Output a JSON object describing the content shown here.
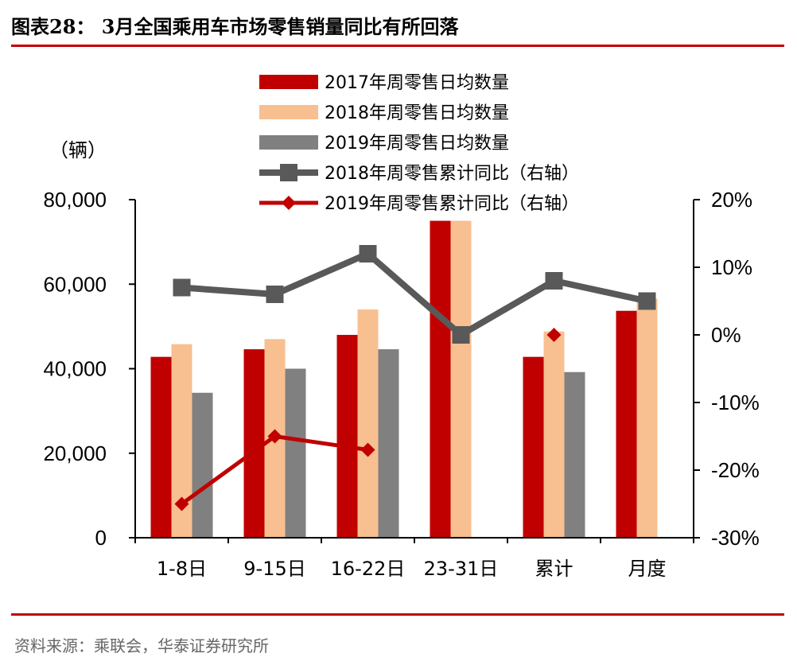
{
  "title": "图表28： 3月全国乘用车市场零售销量同比有所回落",
  "source": "资料来源：乘联会，华泰证券研究所",
  "chart_data": {
    "type": "bar",
    "unit_label": "（辆）",
    "categories": [
      "1-8日",
      "9-15日",
      "16-22日",
      "23-31日",
      "累计",
      "月度"
    ],
    "y_left": {
      "ylim": [
        0,
        80000
      ],
      "ticks": [
        "0",
        "20,000",
        "40,000",
        "60,000",
        "80,000"
      ],
      "tick_values": [
        0,
        20000,
        40000,
        60000,
        80000
      ]
    },
    "y_right": {
      "ylim": [
        -0.3,
        0.2
      ],
      "ticks": [
        "-30%",
        "-20%",
        "-10%",
        "0%",
        "10%",
        "20%"
      ],
      "tick_values": [
        -0.3,
        -0.2,
        -0.1,
        0.0,
        0.1,
        0.2
      ]
    },
    "bar_series": [
      {
        "name": "2017年周零售日均数量",
        "color": "#c00000",
        "values": [
          42800,
          44600,
          48000,
          75000,
          42800,
          53700
        ]
      },
      {
        "name": "2018年周零售日均数量",
        "color": "#f8bf91",
        "values": [
          45800,
          47000,
          54000,
          75000,
          48800,
          56600
        ]
      },
      {
        "name": "2019年周零售日均数量",
        "color": "#808080",
        "values": [
          34300,
          40000,
          44600,
          null,
          39200,
          null
        ]
      }
    ],
    "line_series": [
      {
        "name": "2018年周零售累计同比（右轴）",
        "color": "#595959",
        "marker": "square",
        "values": [
          0.07,
          0.06,
          0.12,
          0.0,
          0.08,
          0.05
        ]
      },
      {
        "name": "2019年周零售累计同比（右轴）",
        "color": "#c00000",
        "marker": "diamond",
        "values": [
          -0.25,
          -0.15,
          -0.17,
          null,
          0.0,
          null
        ]
      }
    ],
    "legend_position": "top-center"
  }
}
